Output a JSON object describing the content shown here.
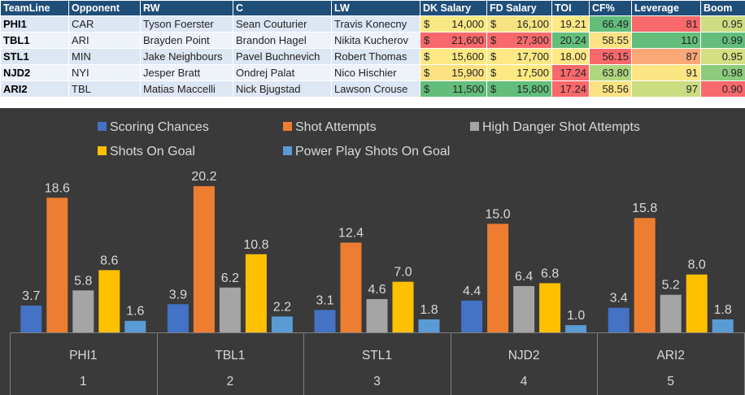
{
  "table": {
    "headers": [
      "TeamLine",
      "Opponent",
      "RW",
      "C",
      "LW",
      "DK Salary",
      "FD Salary",
      "TOI",
      "CF%",
      "Leverage",
      "Boom"
    ],
    "currency_symbol": "$",
    "rows": [
      {
        "team": "PHI1",
        "opp": "CAR",
        "rw": "Tyson Foerster",
        "c": "Sean Couturier",
        "lw": "Travis Konecny",
        "dk": "14,000",
        "fd": "16,100",
        "toi": "19.21",
        "cf": "66.49",
        "lev": "81",
        "boom": "0.95",
        "colors": {
          "dk": "#f8e883",
          "fd": "#f6e483",
          "toi": "#ffe885",
          "cf": "#63be7b",
          "lev": "#f8696b",
          "boom": "#cddd82"
        }
      },
      {
        "team": "TBL1",
        "opp": "ARI",
        "rw": "Brayden Point",
        "c": "Brandon Hagel",
        "lw": "Nikita Kucherov",
        "dk": "21,600",
        "fd": "27,300",
        "toi": "20.24",
        "cf": "58.55",
        "lev": "110",
        "boom": "0.99",
        "colors": {
          "dk": "#f8696b",
          "fd": "#f8696b",
          "toi": "#63be7b",
          "cf": "#fbe283",
          "lev": "#63be7b",
          "boom": "#63be7b"
        }
      },
      {
        "team": "STL1",
        "opp": "MIN",
        "rw": "Jake Neighbours",
        "c": "Pavel Buchnevich",
        "lw": "Robert Thomas",
        "dk": "15,600",
        "fd": "17,700",
        "toi": "18.00",
        "cf": "56.15",
        "lev": "87",
        "boom": "0.95",
        "colors": {
          "dk": "#fde984",
          "fd": "#fde984",
          "toi": "#ffe885",
          "cf": "#f8696b",
          "lev": "#fba877",
          "boom": "#d3df82"
        }
      },
      {
        "team": "NJD2",
        "opp": "NYI",
        "rw": "Jesper Bratt",
        "c": "Ondrej Palat",
        "lw": "Nico Hischier",
        "dk": "15,900",
        "fd": "17,500",
        "toi": "17.24",
        "cf": "63.80",
        "lev": "91",
        "boom": "0.98",
        "colors": {
          "dk": "#fde282",
          "fd": "#fde983",
          "toi": "#f8696b",
          "cf": "#b0d67f",
          "lev": "#fbe683",
          "boom": "#8ccb7e"
        }
      },
      {
        "team": "ARI2",
        "opp": "TBL",
        "rw": "Matias Maccelli",
        "c": "Nick Bjugstad",
        "lw": "Lawson Crouse",
        "dk": "11,500",
        "fd": "15,800",
        "toi": "17.24",
        "cf": "58.56",
        "lev": "97",
        "boom": "0.90",
        "colors": {
          "dk": "#63be7b",
          "fd": "#63be7b",
          "toi": "#f8696b",
          "cf": "#fbe283",
          "lev": "#cbdc81",
          "boom": "#f8696b"
        }
      }
    ]
  },
  "chart_data": {
    "type": "bar",
    "categories": [
      "PHI1",
      "TBL1",
      "STL1",
      "NJD2",
      "ARI2"
    ],
    "category_index_labels": [
      "1",
      "2",
      "3",
      "4",
      "5"
    ],
    "series": [
      {
        "name": "Scoring Chances",
        "color": "#4472c4",
        "values": [
          3.7,
          3.9,
          3.1,
          4.4,
          3.4
        ]
      },
      {
        "name": "Shot Attempts",
        "color": "#ed7d31",
        "values": [
          18.6,
          20.2,
          12.4,
          15.0,
          15.8
        ]
      },
      {
        "name": "High Danger Shot Attempts",
        "color": "#a5a5a5",
        "values": [
          5.8,
          6.2,
          4.6,
          6.4,
          5.2
        ]
      },
      {
        "name": "Shots On Goal",
        "color": "#ffc000",
        "values": [
          8.6,
          10.8,
          7.0,
          6.8,
          8.0
        ]
      },
      {
        "name": "Power Play Shots On Goal",
        "color": "#5b9bd5",
        "values": [
          1.6,
          2.2,
          1.8,
          1.0,
          1.8
        ]
      }
    ],
    "value_labels": [
      [
        "3.7",
        "3.9",
        "3.1",
        "4.4",
        "3.4"
      ],
      [
        "18.6",
        "20.2",
        "12.4",
        "15.0",
        "15.8"
      ],
      [
        "5.8",
        "6.2",
        "4.6",
        "6.4",
        "5.2"
      ],
      [
        "8.6",
        "10.8",
        "7.0",
        "6.8",
        "8.0"
      ],
      [
        "1.6",
        "2.2",
        "1.8",
        "1.0",
        "1.8"
      ]
    ],
    "legend_position": "top",
    "grid": false,
    "ylim": [
      0,
      22
    ]
  }
}
